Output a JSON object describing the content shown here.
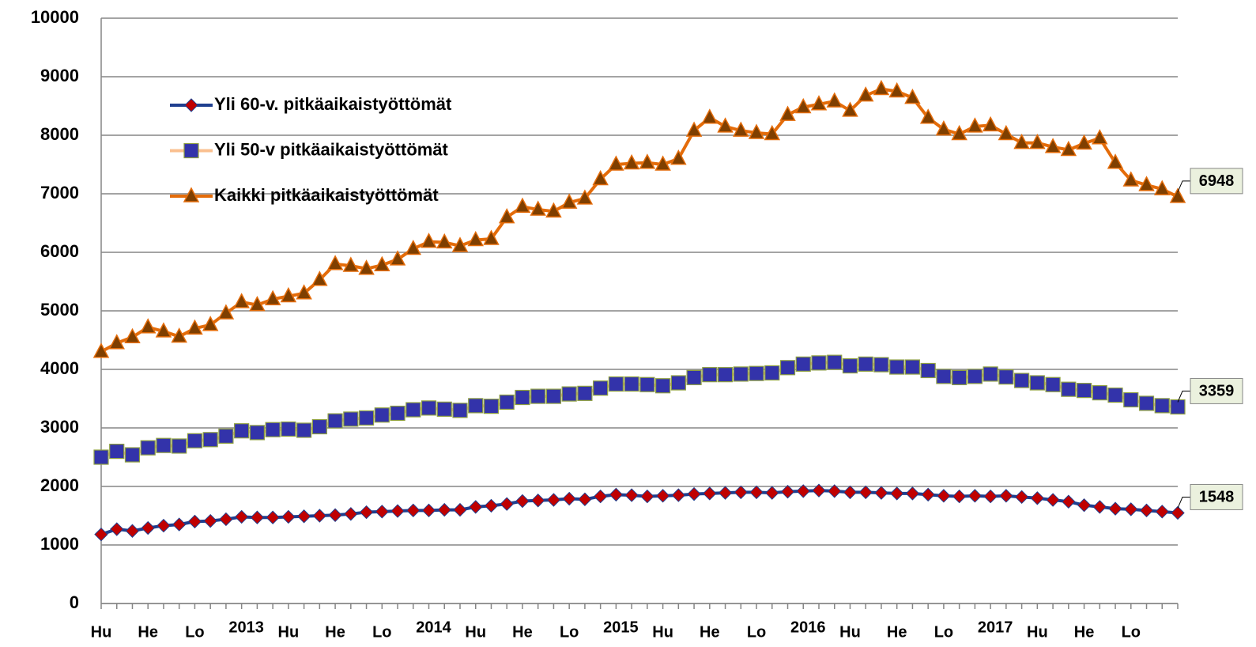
{
  "chart_data": {
    "type": "line",
    "categories": [
      "Hu",
      null,
      null,
      "He",
      null,
      null,
      "Lo",
      null,
      null,
      "2013",
      null,
      null,
      "Hu",
      null,
      null,
      "He",
      null,
      null,
      "Lo",
      null,
      null,
      "2014",
      null,
      null,
      "Hu",
      null,
      null,
      "He",
      null,
      null,
      "Lo",
      null,
      null,
      "2015",
      null,
      null,
      "Hu",
      null,
      null,
      "He",
      null,
      null,
      "Lo",
      null,
      null,
      "2016",
      null,
      null,
      "Hu",
      null,
      null,
      "He",
      null,
      null,
      "Lo",
      null,
      null,
      "2017",
      null,
      null,
      "Hu",
      null,
      null,
      "He",
      null,
      null,
      "Lo",
      null,
      null,
      null
    ],
    "series": [
      {
        "name": "Yli 60-v. pitkäaikaistyöttömät",
        "color": "#1f3f8f",
        "marker": "diamond",
        "marker_color": "#c00000",
        "values": [
          1180,
          1270,
          1240,
          1290,
          1330,
          1350,
          1400,
          1410,
          1440,
          1480,
          1470,
          1470,
          1480,
          1490,
          1500,
          1510,
          1530,
          1560,
          1570,
          1580,
          1590,
          1590,
          1600,
          1600,
          1650,
          1670,
          1700,
          1750,
          1760,
          1770,
          1790,
          1780,
          1830,
          1860,
          1850,
          1830,
          1840,
          1850,
          1870,
          1880,
          1890,
          1900,
          1900,
          1890,
          1910,
          1920,
          1930,
          1920,
          1900,
          1900,
          1890,
          1880,
          1880,
          1860,
          1840,
          1830,
          1840,
          1830,
          1840,
          1820,
          1800,
          1770,
          1740,
          1680,
          1650,
          1620,
          1610,
          1590,
          1570,
          1548
        ]
      },
      {
        "name": "Yli 50-v pitkäaikaistyöttömät",
        "color": "#fac090",
        "marker": "square",
        "marker_color": "#3333aa",
        "values": [
          2500,
          2600,
          2540,
          2660,
          2700,
          2690,
          2780,
          2800,
          2860,
          2950,
          2920,
          2970,
          2980,
          2960,
          3020,
          3120,
          3150,
          3170,
          3220,
          3250,
          3310,
          3340,
          3320,
          3300,
          3380,
          3370,
          3440,
          3520,
          3540,
          3540,
          3580,
          3590,
          3680,
          3750,
          3750,
          3740,
          3720,
          3770,
          3860,
          3910,
          3910,
          3920,
          3930,
          3940,
          4030,
          4090,
          4110,
          4120,
          4060,
          4090,
          4080,
          4040,
          4040,
          3980,
          3880,
          3860,
          3880,
          3920,
          3870,
          3810,
          3770,
          3740,
          3660,
          3640,
          3600,
          3560,
          3480,
          3420,
          3380,
          3359
        ]
      },
      {
        "name": "Kaikki pitkäaikaistyöttömät",
        "color": "#e46c0a",
        "marker": "triangle",
        "marker_color": "#7f3f00",
        "values": [
          4300,
          4450,
          4550,
          4720,
          4650,
          4560,
          4700,
          4760,
          4960,
          5150,
          5100,
          5200,
          5250,
          5300,
          5530,
          5800,
          5770,
          5720,
          5780,
          5880,
          6060,
          6180,
          6170,
          6110,
          6210,
          6230,
          6600,
          6780,
          6730,
          6700,
          6850,
          6920,
          7250,
          7500,
          7520,
          7530,
          7500,
          7600,
          8080,
          8300,
          8150,
          8080,
          8040,
          8020,
          8350,
          8480,
          8530,
          8580,
          8420,
          8680,
          8790,
          8750,
          8640,
          8300,
          8100,
          8020,
          8150,
          8170,
          8020,
          7870,
          7870,
          7800,
          7750,
          7860,
          7950,
          7530,
          7230,
          7150,
          7080,
          6948
        ]
      }
    ],
    "ylim": [
      0,
      10000
    ],
    "yticks": [
      0,
      1000,
      2000,
      3000,
      4000,
      5000,
      6000,
      7000,
      8000,
      9000,
      10000
    ],
    "grid": true,
    "legend": "upper left"
  }
}
